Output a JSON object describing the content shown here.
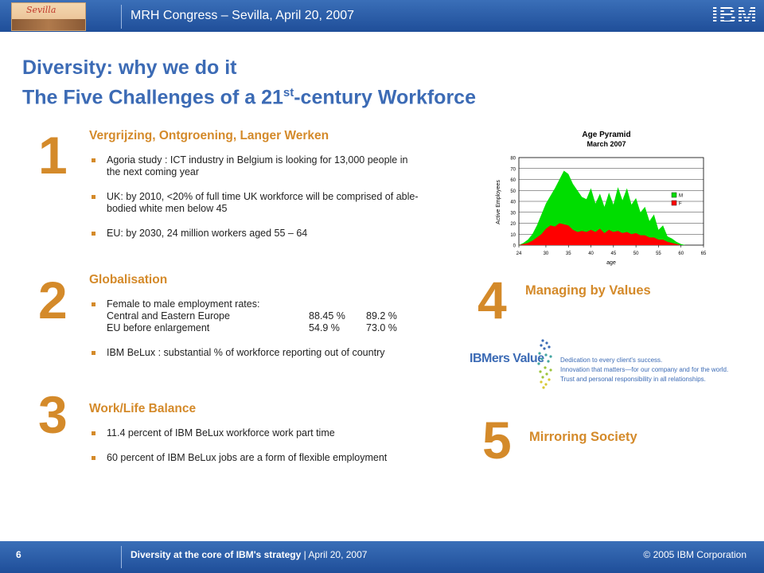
{
  "header": {
    "logo_text": "Sevilla",
    "title": "MRH Congress – Sevilla, April 20, 2007",
    "brand_logo": "IBM"
  },
  "slide": {
    "title_line1": "Diversity: why we do it",
    "title_line2_pre": "The Five Challenges of a 21",
    "title_line2_sup": "st",
    "title_line2_post": "-century Workforce"
  },
  "challenges": [
    {
      "number": "1",
      "title": "Vergrijzing, Ontgroening, Langer Werken",
      "bullets": [
        "Agoria study : ICT industry in Belgium is looking for 13,000 people in the next coming year",
        "UK: by 2010, <20% of full time UK workforce will be comprised of able-bodied white men below 45",
        "EU: by 2030, 24 million workers aged 55 – 64"
      ]
    },
    {
      "number": "2",
      "title": "Globalisation",
      "rates_intro": "Female to male employment rates:",
      "rates": [
        {
          "label": "Central and Eastern Europe",
          "v1": "88.45 %",
          "v2": "89.2 %"
        },
        {
          "label": "EU before enlargement",
          "v1": "54.9 %",
          "v2": "73.0 %"
        }
      ],
      "bullet2": "IBM BeLux : substantial % of workforce reporting out of country"
    },
    {
      "number": "3",
      "title": "Work/Life Balance",
      "bullets": [
        "11.4 percent of IBM BeLux workforce work part time",
        "60 percent of IBM BeLux jobs are a form of flexible employment"
      ]
    },
    {
      "number": "4",
      "title": "Managing by Values"
    },
    {
      "number": "5",
      "title": "Mirroring Society"
    }
  ],
  "values_graphic": {
    "word": "IBMers Value",
    "lines": [
      "Dedication to every client's success.",
      "Innovation that matters—for our company and for the world.",
      "Trust and personal responsibility in all relationships."
    ]
  },
  "chart_data": {
    "type": "area",
    "title": "Age Pyramid",
    "subtitle": "March 2007",
    "xlabel": "age",
    "ylabel": "Active Employees",
    "xlim": [
      24,
      65
    ],
    "ylim": [
      0,
      80
    ],
    "xticks": [
      24,
      30,
      35,
      40,
      45,
      50,
      55,
      60,
      65
    ],
    "yticks": [
      0,
      10,
      20,
      30,
      40,
      50,
      60,
      70,
      80
    ],
    "legend_position": "right",
    "series": [
      {
        "name": "M",
        "color": "#00dd00",
        "x": [
          24,
          25,
          26,
          27,
          28,
          29,
          30,
          31,
          32,
          33,
          34,
          35,
          36,
          37,
          38,
          39,
          40,
          41,
          42,
          43,
          44,
          45,
          46,
          47,
          48,
          49,
          50,
          51,
          52,
          53,
          54,
          55,
          56,
          57,
          58,
          59,
          60,
          61
        ],
        "values": [
          0,
          2,
          5,
          10,
          18,
          28,
          38,
          45,
          52,
          60,
          68,
          65,
          56,
          50,
          44,
          42,
          52,
          38,
          47,
          35,
          48,
          37,
          53,
          41,
          52,
          37,
          43,
          30,
          35,
          22,
          28,
          14,
          18,
          8,
          6,
          3,
          1,
          0
        ]
      },
      {
        "name": "F",
        "color": "#ff0000",
        "x": [
          24,
          25,
          26,
          27,
          28,
          29,
          30,
          31,
          32,
          33,
          34,
          35,
          36,
          37,
          38,
          39,
          40,
          41,
          42,
          43,
          44,
          45,
          46,
          47,
          48,
          49,
          50,
          51,
          52,
          53,
          54,
          55,
          56,
          57,
          58,
          59,
          60,
          61
        ],
        "values": [
          0,
          1,
          2,
          4,
          7,
          10,
          15,
          18,
          17,
          20,
          19,
          18,
          14,
          12,
          13,
          12,
          14,
          12,
          15,
          11,
          14,
          12,
          13,
          11,
          12,
          10,
          11,
          9,
          9,
          7,
          7,
          5,
          5,
          3,
          2,
          1,
          0,
          0
        ]
      }
    ]
  },
  "footer": {
    "page_number": "6",
    "text_bold": "Diversity at the core of IBM's strategy",
    "divider": "|",
    "date": "April 20, 2007",
    "copyright": "© 2005 IBM Corporation"
  },
  "colors": {
    "bar_blue": "#2a5ca8",
    "title_blue": "#3c6bb5",
    "accent_orange": "#d48a2a"
  }
}
